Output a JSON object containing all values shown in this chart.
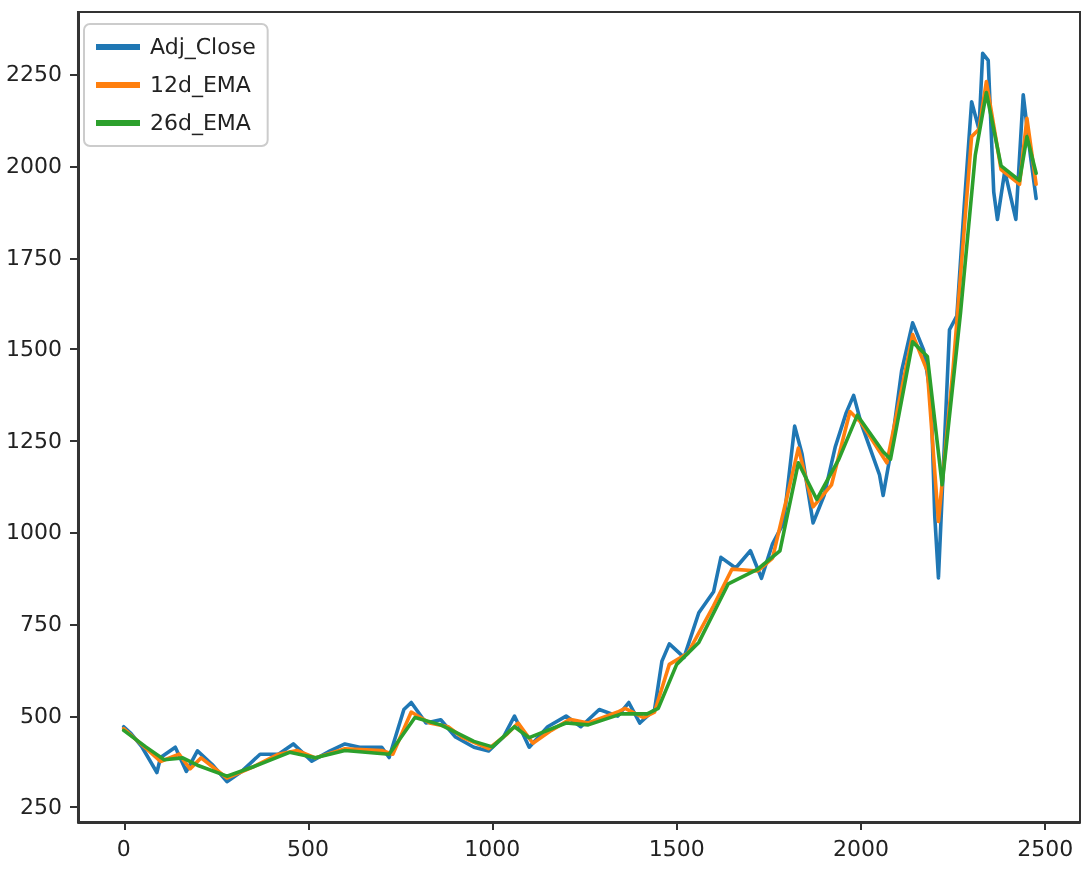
{
  "chart_data": {
    "type": "line",
    "xlim": [
      -124,
      2594
    ],
    "xticks": [
      0,
      500,
      1000,
      1500,
      2000,
      2500
    ],
    "ylim": [
      210,
      2420
    ],
    "yticks": [
      250,
      500,
      750,
      1000,
      1250,
      1500,
      1750,
      2000,
      2250
    ],
    "grid": false,
    "legend": "top left",
    "marker": "none",
    "line_style": "solid",
    "series": [
      {
        "name": "Adj_Close",
        "color": "#1f77b4",
        "x": [
          0,
          20,
          50,
          90,
          100,
          140,
          170,
          200,
          240,
          280,
          320,
          370,
          420,
          460,
          510,
          560,
          600,
          640,
          700,
          720,
          760,
          780,
          820,
          860,
          900,
          950,
          990,
          1030,
          1060,
          1100,
          1150,
          1200,
          1240,
          1290,
          1340,
          1370,
          1400,
          1440,
          1460,
          1480,
          1520,
          1560,
          1600,
          1620,
          1660,
          1700,
          1730,
          1760,
          1790,
          1820,
          1840,
          1870,
          1900,
          1930,
          1960,
          1980,
          2000,
          2050,
          2060,
          2080,
          2110,
          2140,
          2170,
          2190,
          2200,
          2210,
          2220,
          2240,
          2260,
          2280,
          2300,
          2320,
          2330,
          2345,
          2360,
          2370,
          2390,
          2420,
          2440,
          2460,
          2475
        ],
        "values": [
          470,
          451,
          414,
          345,
          386,
          414,
          348,
          404,
          367,
          320,
          348,
          395,
          395,
          423,
          376,
          404,
          423,
          414,
          414,
          386,
          517,
          536,
          480,
          489,
          442,
          414,
          404,
          442,
          499,
          414,
          470,
          499,
          470,
          517,
          499,
          536,
          480,
          517,
          649,
          696,
          659,
          781,
          838,
          932,
          903,
          950,
          875,
          969,
          1026,
          1290,
          1214,
          1026,
          1101,
          1233,
          1327,
          1374,
          1299,
          1158,
          1101,
          1214,
          1440,
          1572,
          1497,
          1365,
          1045,
          876,
          1101,
          1553,
          1591,
          1892,
          2175,
          2100,
          2307,
          2288,
          1929,
          1854,
          1986,
          1854,
          2194,
          2024,
          1911
        ]
      },
      {
        "name": "12d_EMA",
        "color": "#ff7f0e",
        "x": [
          0,
          50,
          100,
          150,
          180,
          210,
          280,
          350,
          420,
          470,
          520,
          600,
          700,
          730,
          780,
          830,
          880,
          920,
          990,
          1040,
          1070,
          1110,
          1160,
          1210,
          1260,
          1340,
          1360,
          1410,
          1440,
          1480,
          1530,
          1600,
          1650,
          1720,
          1760,
          1800,
          1830,
          1870,
          1920,
          1970,
          2000,
          2070,
          2140,
          2180,
          2210,
          2250,
          2300,
          2320,
          2340,
          2380,
          2430,
          2450,
          2475
        ],
        "values": [
          465,
          420,
          375,
          395,
          355,
          385,
          330,
          360,
          395,
          405,
          385,
          410,
          405,
          395,
          510,
          480,
          470,
          440,
          410,
          450,
          480,
          425,
          460,
          490,
          480,
          510,
          520,
          495,
          510,
          640,
          670,
          800,
          900,
          895,
          930,
          1100,
          1230,
          1070,
          1130,
          1330,
          1300,
          1190,
          1540,
          1440,
          1030,
          1450,
          2080,
          2100,
          2230,
          1990,
          1950,
          2130,
          1950
        ]
      },
      {
        "name": "26d_EMA",
        "color": "#2ca02c",
        "x": [
          0,
          60,
          110,
          160,
          200,
          280,
          350,
          450,
          520,
          600,
          720,
          790,
          860,
          950,
          1000,
          1060,
          1100,
          1200,
          1260,
          1350,
          1420,
          1450,
          1500,
          1560,
          1640,
          1720,
          1780,
          1830,
          1880,
          1940,
          1990,
          2060,
          2080,
          2140,
          2180,
          2220,
          2270,
          2310,
          2340,
          2380,
          2430,
          2450,
          2475
        ],
        "values": [
          460,
          415,
          380,
          385,
          365,
          335,
          360,
          400,
          385,
          405,
          395,
          495,
          475,
          430,
          415,
          470,
          440,
          480,
          475,
          505,
          505,
          520,
          640,
          700,
          860,
          900,
          950,
          1190,
          1090,
          1200,
          1320,
          1220,
          1200,
          1520,
          1480,
          1130,
          1600,
          2030,
          2200,
          2000,
          1960,
          2080,
          1980
        ]
      }
    ]
  }
}
